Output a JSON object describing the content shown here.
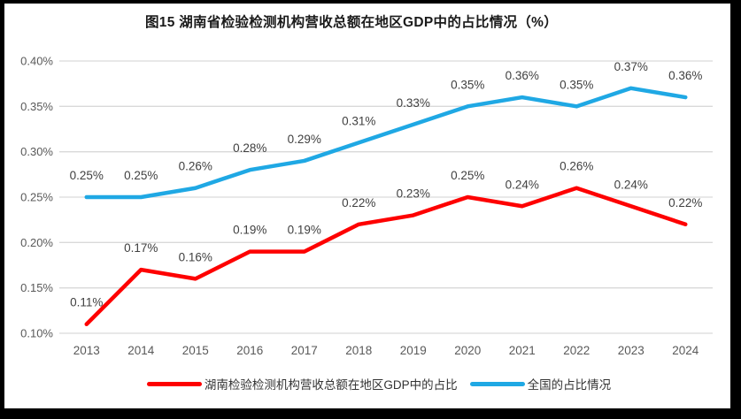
{
  "frame": {
    "border_color": "#000000",
    "background_color": "#ffffff"
  },
  "chart_data": {
    "type": "line",
    "title": "图15 湖南省检验检测机构营收总额在地区GDP中的占比情况（%）",
    "categories": [
      "2013",
      "2014",
      "2015",
      "2016",
      "2017",
      "2018",
      "2019",
      "2020",
      "2021",
      "2022",
      "2023",
      "2024"
    ],
    "series": [
      {
        "name": "湖南检验检测机构营收总额在地区GDP中的占比",
        "color": "#FE0000",
        "values": [
          0.11,
          0.17,
          0.16,
          0.19,
          0.19,
          0.22,
          0.23,
          0.25,
          0.24,
          0.26,
          0.24,
          0.22
        ],
        "labels": [
          "0.11%",
          "0.17%",
          "0.16%",
          "0.19%",
          "0.19%",
          "0.22%",
          "0.23%",
          "0.25%",
          "0.24%",
          "0.26%",
          "0.24%",
          "0.22%"
        ]
      },
      {
        "name": "全国的占比情况",
        "color": "#1FA8E4",
        "values": [
          0.25,
          0.25,
          0.26,
          0.28,
          0.29,
          0.31,
          0.33,
          0.35,
          0.36,
          0.35,
          0.37,
          0.36
        ],
        "labels": [
          "0.25%",
          "0.25%",
          "0.26%",
          "0.28%",
          "0.29%",
          "0.31%",
          "0.33%",
          "0.35%",
          "0.36%",
          "0.35%",
          "0.37%",
          "0.36%"
        ]
      }
    ],
    "y_axis": {
      "min": 0.1,
      "max": 0.4,
      "step": 0.05,
      "tick_labels": [
        "0.40%",
        "0.35%",
        "0.30%",
        "0.25%",
        "0.20%",
        "0.15%",
        "0.10%"
      ]
    },
    "xlabel": "",
    "ylabel": "",
    "grid": true,
    "legend_position": "bottom"
  },
  "styles": {
    "grid_color": "#D9D9D9",
    "axis_text_color": "#595959",
    "label_text_color": "#404040",
    "title_color": "#1a1a1a",
    "legend_text_color": "#333333"
  }
}
